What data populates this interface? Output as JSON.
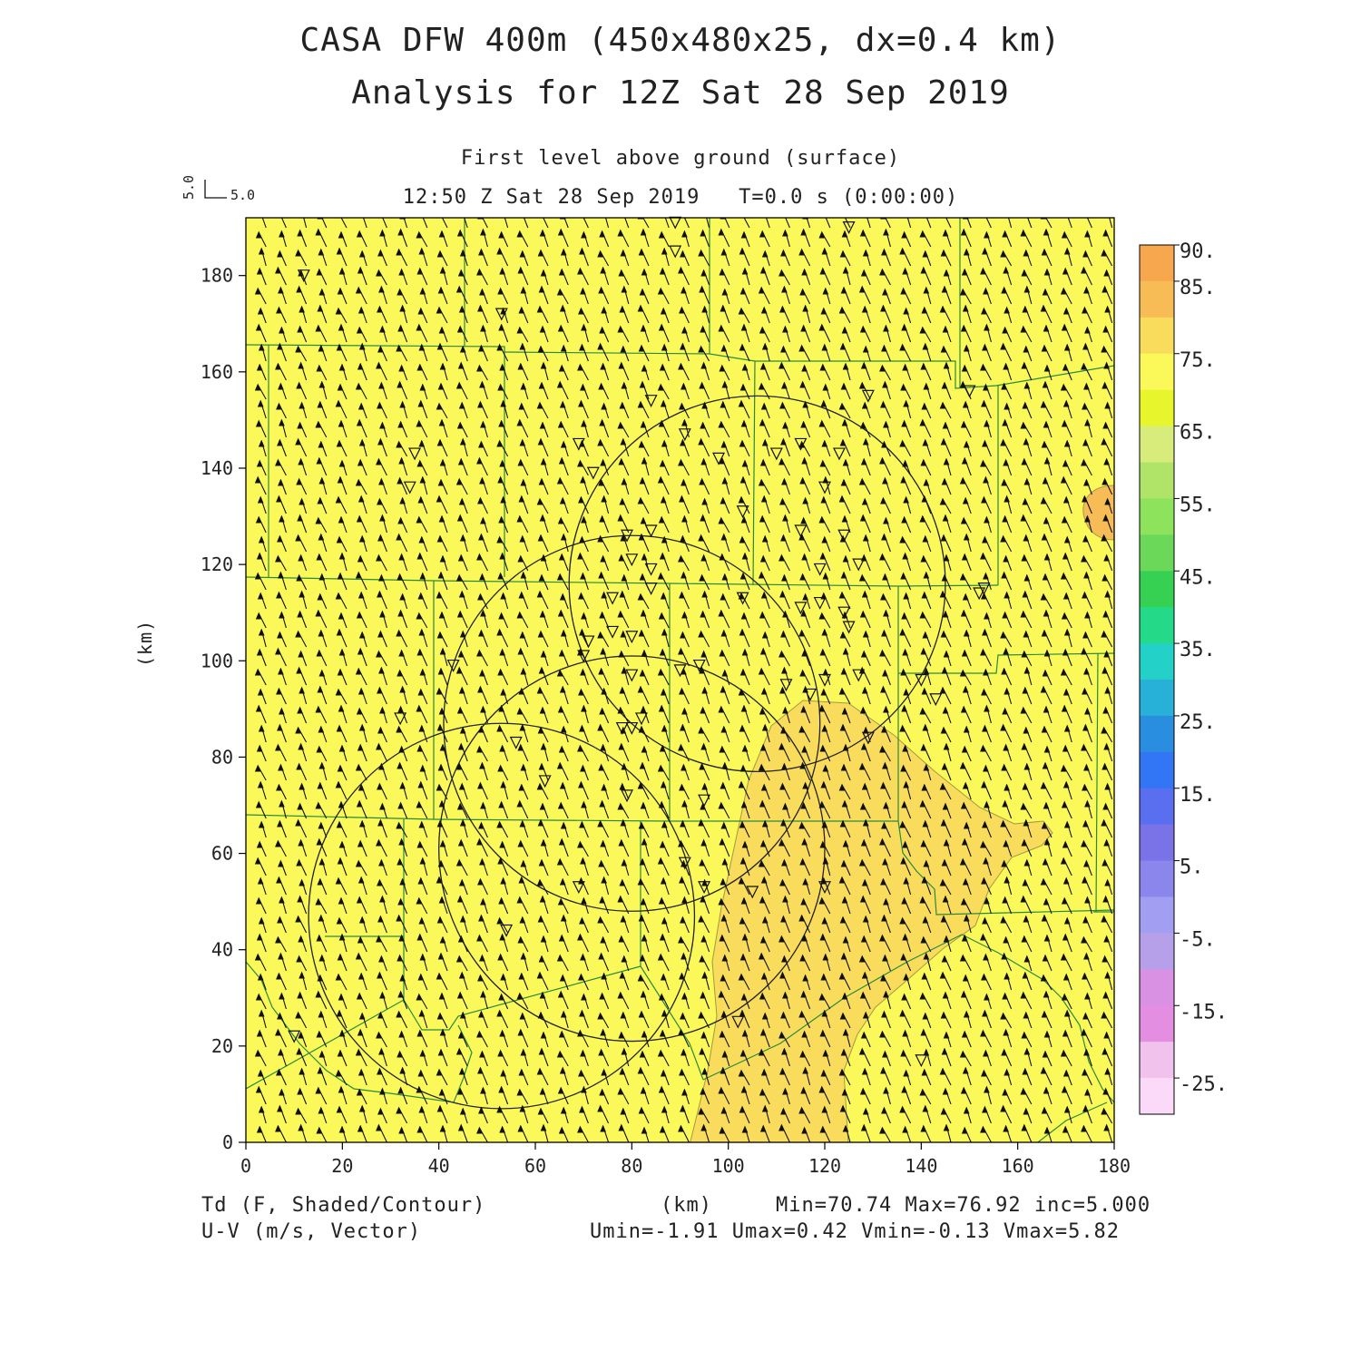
{
  "header": {
    "title_line1": "CASA DFW 400m (450x480x25, dx=0.4 km)",
    "title_line2": "Analysis for 12Z Sat 28 Sep 2019",
    "subtitle_line1": "First level above ground (surface)",
    "subtitle_line2": "12:50 Z Sat 28 Sep 2019   T=0.0 s (0:00:00)"
  },
  "vector_key": {
    "u_label": "5.0",
    "v_label": "5.0"
  },
  "footer": {
    "left_line1": "Td (F, Shaded/Contour)",
    "left_line2": "U-V (m/s, Vector)",
    "center": "(km)",
    "right_line1": "Min=70.74 Max=76.92 inc=5.000",
    "right_line2": "Umin=-1.91 Umax=0.42 Vmin=-0.13 Vmax=5.82"
  },
  "chart_data": {
    "type": "heatmap",
    "xlabel": "(km)",
    "ylabel": "(km)",
    "xlim": [
      0,
      180
    ],
    "ylim": [
      0,
      192
    ],
    "x_ticks": [
      0,
      20,
      40,
      60,
      80,
      100,
      120,
      140,
      160,
      180
    ],
    "y_ticks": [
      0,
      20,
      40,
      60,
      80,
      100,
      120,
      140,
      160,
      180
    ],
    "field": "Td (F)",
    "min": 70.74,
    "max": 76.92,
    "contour_increment": 5.0,
    "dominant_band": "70-75",
    "secondary_band": "75-80",
    "wind": {
      "umin": -1.91,
      "umax": 0.42,
      "vmin": -0.13,
      "vmax": 5.82,
      "predominant_direction": "northward"
    },
    "colorbar": {
      "labels": [
        "90.",
        "85.",
        "75.",
        "65.",
        "55.",
        "45.",
        "35.",
        "25.",
        "15.",
        "5.",
        "-5.",
        "-15.",
        "-25."
      ],
      "colors": [
        "#f7a84e",
        "#f8bc57",
        "#f9dc5c",
        "#fbf95a",
        "#e6f52c",
        "#d8ec7c",
        "#b0e469",
        "#8ee35c",
        "#6cd85a",
        "#36d152",
        "#24d988",
        "#24d1c8",
        "#27b0d8",
        "#2a8ee0",
        "#3376f5",
        "#5a6ff0",
        "#7a73e8",
        "#8a86ec",
        "#a29ff2",
        "#b6a0ea",
        "#d992e3",
        "#e48ee2",
        "#f0c2ec",
        "#fadaf8"
      ]
    },
    "radar_range_circles_km": [
      {
        "center": [
          106,
          116
        ],
        "radius": 39
      },
      {
        "center": [
          80,
          87
        ],
        "radius": 39
      },
      {
        "center": [
          80,
          61
        ],
        "radius": 40
      },
      {
        "center": [
          53,
          47
        ],
        "radius": 40
      }
    ],
    "station_markers_km": [
      [
        89,
        191
      ],
      [
        125,
        190
      ],
      [
        89,
        185
      ],
      [
        12,
        180
      ],
      [
        53,
        172
      ],
      [
        150,
        156
      ],
      [
        129,
        155
      ],
      [
        84,
        154
      ],
      [
        91,
        147
      ],
      [
        69,
        145
      ],
      [
        35,
        143
      ],
      [
        98,
        142
      ],
      [
        115,
        145
      ],
      [
        110,
        143
      ],
      [
        123,
        143
      ],
      [
        72,
        139
      ],
      [
        34,
        136
      ],
      [
        120,
        136
      ],
      [
        103,
        131
      ],
      [
        79,
        126
      ],
      [
        84,
        127
      ],
      [
        115,
        127
      ],
      [
        124,
        126
      ],
      [
        80,
        121
      ],
      [
        84,
        119
      ],
      [
        127,
        120
      ],
      [
        119,
        119
      ],
      [
        153,
        115
      ],
      [
        103,
        113
      ],
      [
        84,
        115
      ],
      [
        76,
        113
      ],
      [
        152,
        114
      ],
      [
        115,
        111
      ],
      [
        119,
        112
      ],
      [
        124,
        110
      ],
      [
        125,
        107
      ],
      [
        76,
        106
      ],
      [
        80,
        105
      ],
      [
        71,
        104
      ],
      [
        70,
        101
      ],
      [
        43,
        99
      ],
      [
        94,
        99
      ],
      [
        90,
        98
      ],
      [
        80,
        97
      ],
      [
        127,
        97
      ],
      [
        120,
        96
      ],
      [
        112,
        95
      ],
      [
        117,
        93
      ],
      [
        140,
        96
      ],
      [
        143,
        92
      ],
      [
        32,
        88
      ],
      [
        82,
        88
      ],
      [
        80,
        86
      ],
      [
        78,
        86
      ],
      [
        129,
        84
      ],
      [
        56,
        83
      ],
      [
        62,
        75
      ],
      [
        95,
        71
      ],
      [
        79,
        72
      ],
      [
        91,
        58
      ],
      [
        69,
        53
      ],
      [
        95,
        53
      ],
      [
        120,
        53
      ],
      [
        105,
        52
      ],
      [
        54,
        44
      ],
      [
        102,
        25
      ],
      [
        10,
        22
      ],
      [
        140,
        17
      ]
    ]
  }
}
